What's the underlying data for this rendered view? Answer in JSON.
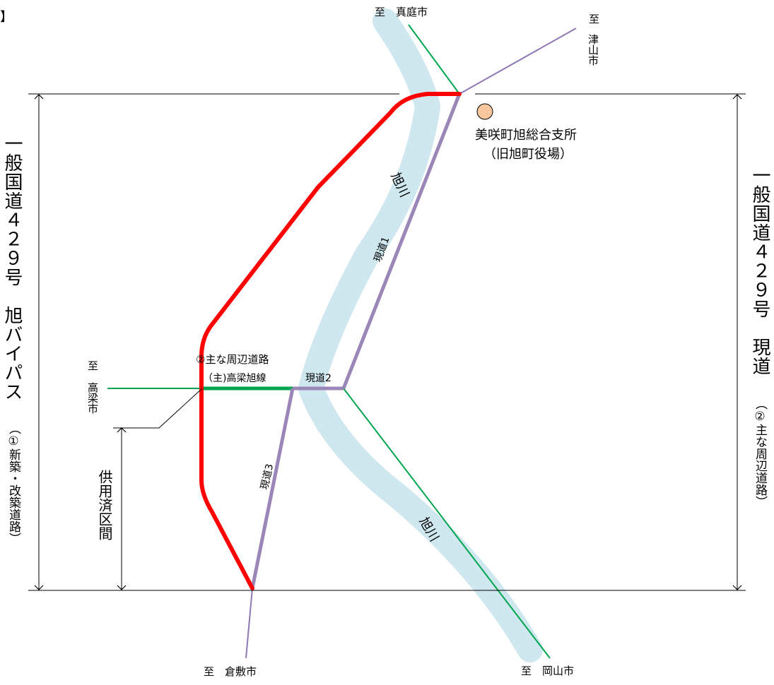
{
  "colors": {
    "river": "#cfe7ee",
    "bypass": "#ff0000",
    "current_road": "#9b86b8",
    "main_road": "#00a54f",
    "minor_road": "#8f78b3",
    "office_marker": "#f8c79e",
    "river_label": "#1f4e99"
  },
  "title_fragment": "】",
  "destinations": {
    "maniwa": "至　真庭市",
    "tsuyama_to": "至",
    "tsuyama_city": "津山市",
    "takahashi_to": "至",
    "takahashi_city": "高梁市",
    "kurashiki": "至　倉敷市",
    "okayama": "至　岡山市"
  },
  "office": {
    "name": "美咲町旭総合支所",
    "former": "（旧旭町役場）"
  },
  "river": {
    "upper_label": "旭川",
    "lower_label": "旭川"
  },
  "roads": {
    "current1": "現道1",
    "current2": "現道2",
    "current3": "現道3",
    "main_roads_heading": "②主な周辺道路",
    "takahashi_asahi_line": "（主)高梁旭線"
  },
  "left_title": {
    "main": "一般国道４２９号　旭バイパス",
    "sub": "（①新築・改築道路）"
  },
  "right_title": {
    "main": "一般国道４２９号　現道",
    "sub": "（②主な周辺道路）"
  },
  "in_service_section": "供用済区間"
}
